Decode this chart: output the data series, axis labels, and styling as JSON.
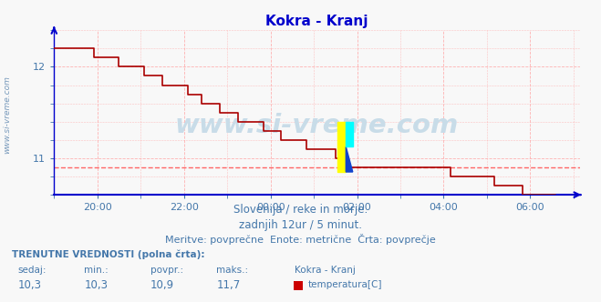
{
  "title": "Kokra - Kranj",
  "title_color": "#0000cc",
  "bg_color": "#f8f8f8",
  "plot_bg_color": "#f8f8f8",
  "grid_color": "#ffaaaa",
  "axis_color": "#0000cc",
  "line_color": "#aa0000",
  "avg_line_color": "#ff6666",
  "avg_value": 10.9,
  "y_axis_min": 10.6,
  "y_axis_max": 12.4,
  "watermark": "www.si-vreme.com",
  "watermark_color": "#c8dce8",
  "sub_text1": "Slovenija / reke in morje.",
  "sub_text2": "zadnjih 12ur / 5 minut.",
  "sub_text3": "Meritve: povprečne  Enote: metrične  Črta: povprečje",
  "sub_text_color": "#4477aa",
  "table_header": "TRENUTNE VREDNOSTI (polna črta):",
  "table_cols": [
    "sedaj:",
    "min.:",
    "povpr.:",
    "maks.:",
    "Kokra - Kranj"
  ],
  "table_vals": [
    "10,3",
    "10,3",
    "10,9",
    "11,7",
    "temperatura[C]"
  ],
  "legend_color": "#cc0000",
  "sidebar_text": "www.si-vreme.com",
  "sidebar_color": "#7799bb",
  "x_tick_positions": [
    1,
    3,
    5,
    7,
    9,
    11
  ],
  "x_tick_labels": [
    "20:00",
    "22:00",
    "00:00",
    "02:00",
    "04:00",
    "06:00"
  ],
  "y_ticks": [
    11,
    12
  ],
  "y_tick_labels": [
    "11",
    "12"
  ]
}
